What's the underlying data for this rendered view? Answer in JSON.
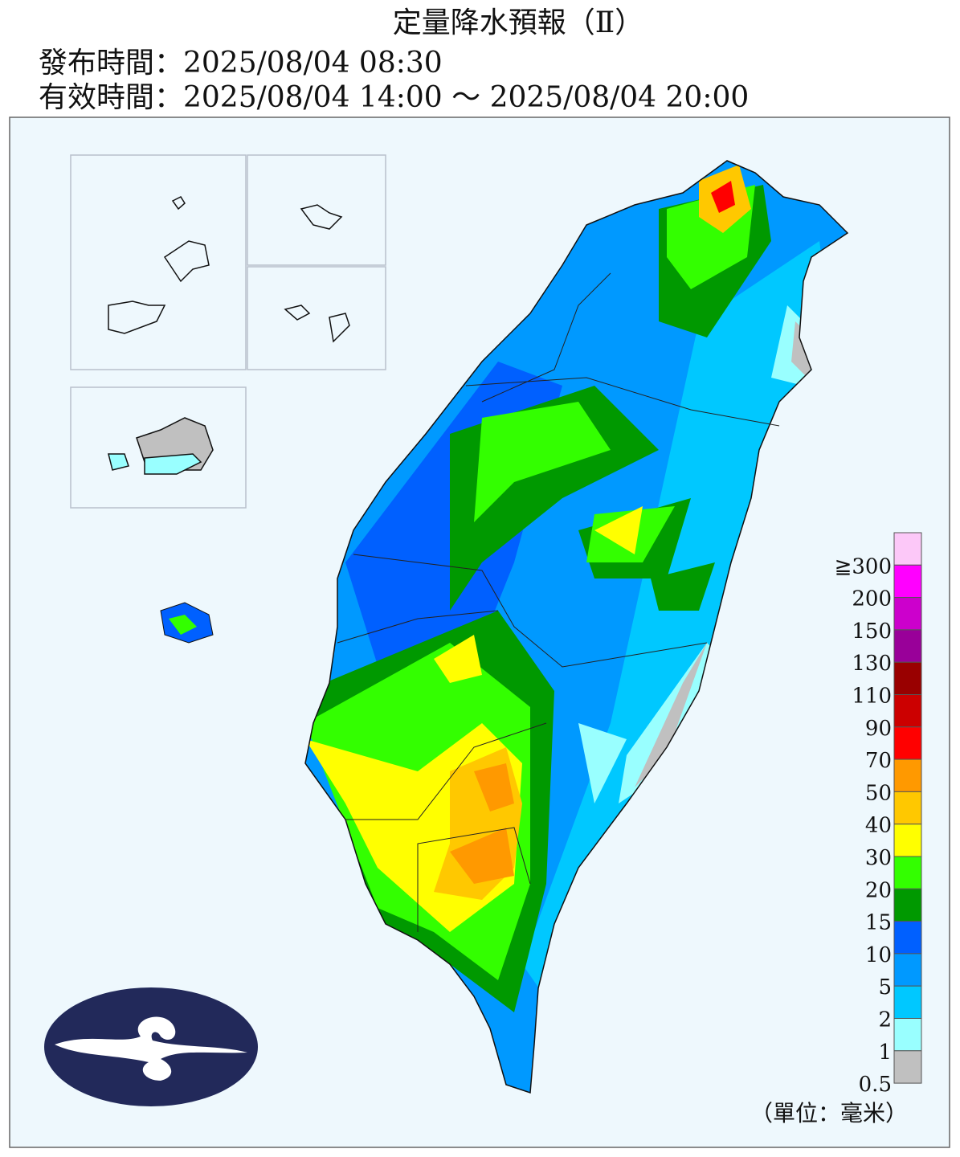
{
  "header": {
    "title": "定量降水預報（Ⅱ）",
    "issued": "發布時間：2025/08/04 08:30",
    "valid": "有效時間：2025/08/04 14:00 ～ 2025/08/04 20:00"
  },
  "legend": {
    "entries": [
      {
        "label": "≧300",
        "color": "#fcc8f8"
      },
      {
        "label": "200",
        "color": "#ff00ff"
      },
      {
        "label": "150",
        "color": "#cc00cc"
      },
      {
        "label": "130",
        "color": "#990099"
      },
      {
        "label": "110",
        "color": "#990000"
      },
      {
        "label": "90",
        "color": "#cc0000"
      },
      {
        "label": "70",
        "color": "#ff0000"
      },
      {
        "label": "50",
        "color": "#ff9900"
      },
      {
        "label": "40",
        "color": "#ffc800"
      },
      {
        "label": "30",
        "color": "#ffff00"
      },
      {
        "label": "20",
        "color": "#33ff00"
      },
      {
        "label": "15",
        "color": "#009900"
      },
      {
        "label": "10",
        "color": "#0060ff"
      },
      {
        "label": "5",
        "color": "#0099ff"
      },
      {
        "label": "2",
        "color": "#00c8ff"
      },
      {
        "label": "1",
        "color": "#99ffff"
      },
      {
        "label": "0.5",
        "color": "#c0c0c0"
      }
    ],
    "unit": "（單位：毫米）"
  }
}
